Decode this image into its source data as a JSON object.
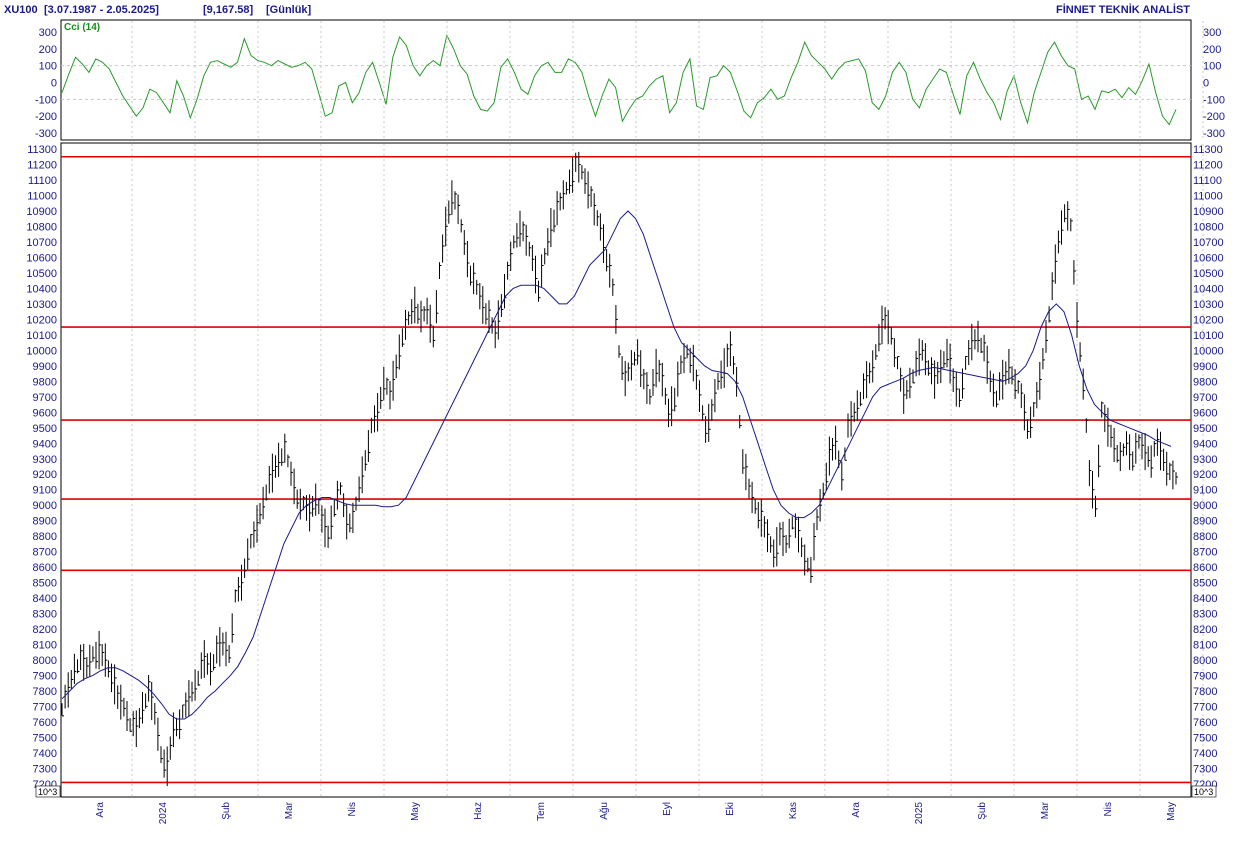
{
  "header": {
    "symbol": "XU100",
    "range": "[3.07.1987 - 2.05.2025]",
    "last_value": "[9,167.58]",
    "period": "[Günlük]",
    "brand": "FİNNET TEKNİK ANALİST"
  },
  "unit_label": "10^3",
  "colors": {
    "price_bars": "#000000",
    "moving_average": "#1a1a8c",
    "cci": "#2a9a2a",
    "support_resistance": "#e00000",
    "axis_text": "#1a1a8c",
    "grid": "#c8c8c8"
  },
  "chart_data": [
    {
      "type": "line",
      "name": "Cci (14)",
      "ylim": [
        -300,
        300
      ],
      "y_ticks": [
        300,
        200,
        100,
        0,
        -100,
        -200,
        -300
      ],
      "y_tick_labels": [
        "300",
        "200",
        "100",
        "0",
        "-100",
        "-200",
        "-300"
      ],
      "reference_lines": [
        100,
        -100
      ],
      "values": [
        -60,
        50,
        150,
        110,
        60,
        140,
        120,
        80,
        0,
        -80,
        -140,
        -200,
        -150,
        -40,
        -60,
        -120,
        -180,
        10,
        -80,
        -210,
        -100,
        40,
        120,
        130,
        110,
        90,
        120,
        260,
        160,
        130,
        120,
        100,
        130,
        110,
        90,
        100,
        120,
        80,
        -60,
        -200,
        -180,
        -20,
        0,
        -120,
        -60,
        60,
        120,
        0,
        -130,
        150,
        270,
        220,
        100,
        40,
        100,
        130,
        100,
        280,
        200,
        100,
        50,
        -80,
        -160,
        -170,
        -120,
        90,
        140,
        60,
        -40,
        -70,
        40,
        100,
        120,
        60,
        60,
        140,
        120,
        60,
        -80,
        -200,
        -80,
        20,
        -30,
        -230,
        -160,
        -100,
        -80,
        -20,
        20,
        40,
        -180,
        -120,
        60,
        140,
        -140,
        -160,
        30,
        40,
        100,
        60,
        -50,
        -170,
        -210,
        -120,
        -90,
        -40,
        -100,
        -80,
        30,
        120,
        240,
        160,
        120,
        80,
        20,
        80,
        120,
        130,
        140,
        70,
        -120,
        -160,
        -80,
        60,
        120,
        60,
        -100,
        -150,
        -40,
        20,
        80,
        60,
        -70,
        -190,
        40,
        120,
        20,
        -60,
        -120,
        -220,
        -50,
        40,
        -120,
        -240,
        -60,
        60,
        180,
        240,
        160,
        100,
        80,
        -100,
        -80,
        -160,
        -50,
        -60,
        -40,
        -90,
        -30,
        -70,
        10,
        110,
        -60,
        -200,
        -250,
        -160
      ]
    },
    {
      "type": "bar",
      "name": "XU100",
      "ylim": [
        7200,
        11300
      ],
      "y_ticks": [
        7200,
        7300,
        7400,
        7500,
        7600,
        7700,
        7800,
        7900,
        8000,
        8100,
        8200,
        8300,
        8400,
        8500,
        8600,
        8700,
        8800,
        8900,
        9000,
        9100,
        9200,
        9300,
        9400,
        9500,
        9600,
        9700,
        9800,
        9900,
        10000,
        10100,
        10200,
        10300,
        10400,
        10500,
        10600,
        10700,
        10800,
        10900,
        11000,
        11100,
        11200,
        11300
      ],
      "y_tick_labels": [
        "7200",
        "7300",
        "7400",
        "7500",
        "7600",
        "7700",
        "7800",
        "7900",
        "8000",
        "8100",
        "8200",
        "8300",
        "8400",
        "8500",
        "8600",
        "8700",
        "8800",
        "8900",
        "9000",
        "9100",
        "9200",
        "9300",
        "9400",
        "9500",
        "9600",
        "9700",
        "9800",
        "9900",
        "10000",
        "10100",
        "10200",
        "10300",
        "10400",
        "10500",
        "10600",
        "10700",
        "10800",
        "10900",
        "11000",
        "11100",
        "11200",
        "11300"
      ],
      "x_labels": [
        "Ara",
        "2024",
        "Şub",
        "Mar",
        "Nis",
        "May",
        "Haz",
        "Tem",
        "Ağu",
        "Eyl",
        "Eki",
        "Kas",
        "Ara",
        "2025",
        "Şub",
        "Mar",
        "Nis",
        "May"
      ],
      "horizontal_levels": [
        11250,
        10150,
        9550,
        9040,
        8580,
        7210
      ],
      "close": [
        7700,
        7800,
        7950,
        8000,
        7950,
        8050,
        8050,
        8000,
        7900,
        7750,
        7700,
        7600,
        7550,
        7700,
        7800,
        7650,
        7400,
        7300,
        7550,
        7600,
        7700,
        7800,
        7900,
        8000,
        7950,
        8050,
        8100,
        8050,
        8400,
        8500,
        8700,
        8800,
        8950,
        9100,
        9200,
        9300,
        9350,
        9200,
        9050,
        9000,
        8950,
        9050,
        8900,
        8800,
        9000,
        9100,
        8900,
        8900,
        9100,
        9300,
        9500,
        9600,
        9800,
        9700,
        9900,
        10100,
        10200,
        10300,
        10200,
        10250,
        10100,
        10500,
        10800,
        11000,
        10900,
        10700,
        10500,
        10400,
        10300,
        10200,
        10100,
        10300,
        10500,
        10700,
        10800,
        10700,
        10600,
        10400,
        10600,
        10800,
        10900,
        11000,
        11100,
        11200,
        11150,
        11050,
        10900,
        10800,
        10600,
        10400,
        10000,
        9800,
        9900,
        10000,
        9800,
        9700,
        9900,
        9800,
        9600,
        9700,
        9900,
        10000,
        9900,
        9700,
        9500,
        9600,
        9800,
        9900,
        10000,
        9800,
        9300,
        9100,
        9000,
        8900,
        8800,
        8700,
        8800,
        8750,
        8900,
        8800,
        8650,
        8600,
        8900,
        9100,
        9300,
        9400,
        9200,
        9500,
        9600,
        9700,
        9800,
        9900,
        10100,
        10200,
        10100,
        9900,
        9700,
        9800,
        9900,
        10000,
        9900,
        9800,
        9900,
        10000,
        9800,
        9700,
        9900,
        10050,
        10100,
        10000,
        9800,
        9700,
        9800,
        9900,
        9800,
        9700,
        9500,
        9600,
        9800,
        10100,
        10400,
        10700,
        10900,
        10800,
        10200,
        9800,
        9200,
        9000,
        9600,
        9500,
        9400,
        9300,
        9400,
        9300,
        9400,
        9350,
        9300,
        9400,
        9300,
        9200,
        9170
      ],
      "moving_average": [
        7750,
        7800,
        7850,
        7880,
        7900,
        7930,
        7950,
        7950,
        7930,
        7900,
        7870,
        7830,
        7780,
        7720,
        7650,
        7620,
        7620,
        7650,
        7700,
        7760,
        7800,
        7850,
        7900,
        7960,
        8050,
        8150,
        8300,
        8450,
        8600,
        8750,
        8850,
        8950,
        9000,
        9030,
        9050,
        9050,
        9030,
        9010,
        9000,
        9000,
        9000,
        9000,
        8990,
        8990,
        9000,
        9050,
        9150,
        9250,
        9350,
        9450,
        9550,
        9650,
        9750,
        9850,
        9950,
        10050,
        10150,
        10250,
        10350,
        10400,
        10420,
        10420,
        10420,
        10400,
        10350,
        10300,
        10300,
        10350,
        10450,
        10550,
        10600,
        10650,
        10750,
        10850,
        10900,
        10850,
        10750,
        10600,
        10450,
        10300,
        10150,
        10050,
        10000,
        9950,
        9900,
        9870,
        9860,
        9850,
        9800,
        9700,
        9550,
        9400,
        9250,
        9100,
        9000,
        8950,
        8920,
        8920,
        8950,
        9000,
        9100,
        9200,
        9300,
        9400,
        9500,
        9600,
        9700,
        9760,
        9780,
        9800,
        9820,
        9850,
        9870,
        9880,
        9890,
        9880,
        9870,
        9860,
        9850,
        9840,
        9830,
        9820,
        9810,
        9800,
        9820,
        9850,
        9900,
        10000,
        10150,
        10250,
        10300,
        10250,
        10100,
        9900,
        9750,
        9650,
        9600,
        9550,
        9530,
        9510,
        9490,
        9470,
        9450,
        9420,
        9400,
        9380
      ]
    }
  ]
}
